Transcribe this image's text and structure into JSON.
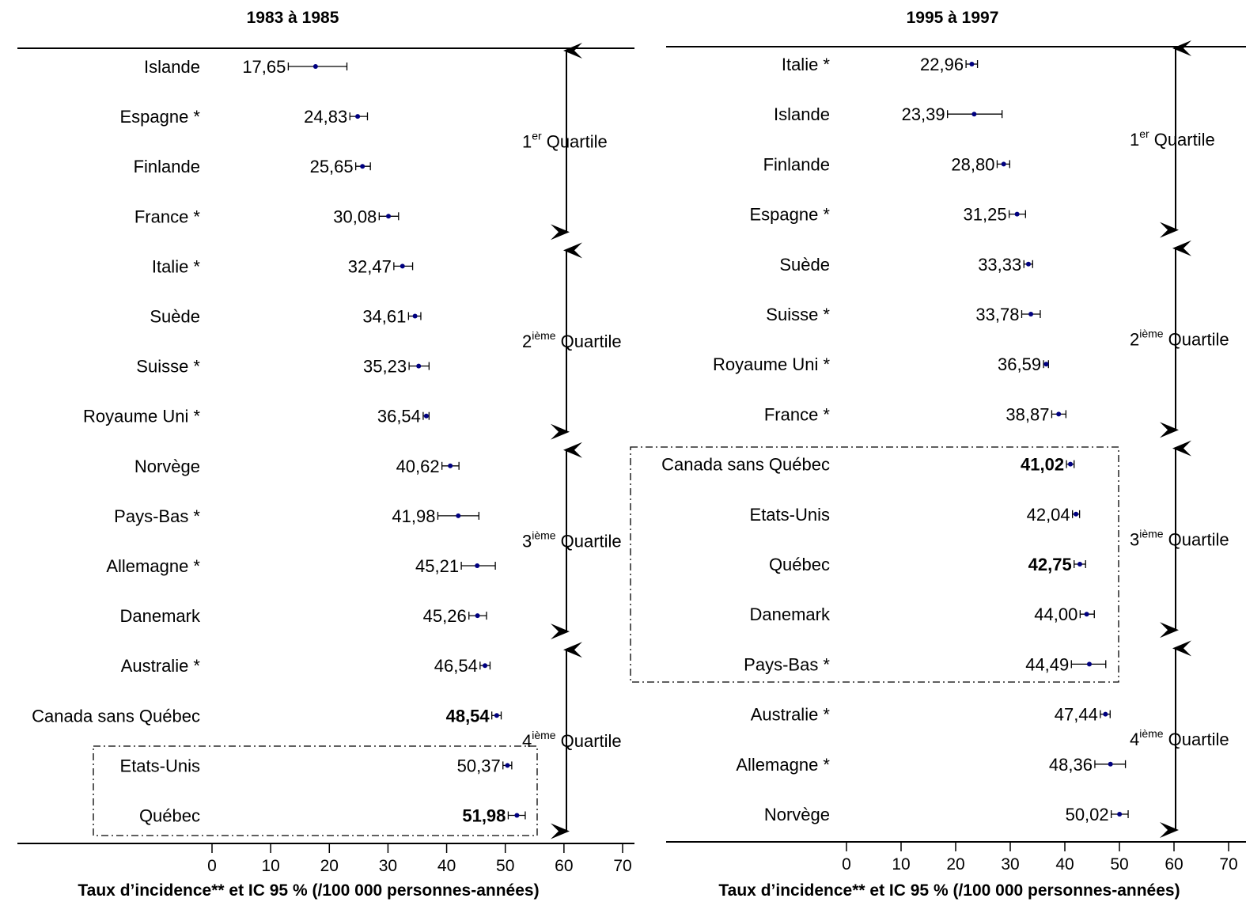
{
  "chart_data": [
    {
      "type": "forest",
      "title": "1983 à 1985",
      "xlabel": "Taux d’incidence** et IC 95 % (/100 000 personnes-années)",
      "xlim": [
        0,
        70
      ],
      "xticks": [
        0,
        10,
        20,
        30,
        40,
        50,
        60,
        70
      ],
      "series": [
        {
          "label": "Islande",
          "value": 17.65,
          "value_label": "17,65",
          "ci": [
            13.0,
            23.0
          ],
          "bold": false
        },
        {
          "label": "Espagne *",
          "value": 24.83,
          "value_label": "24,83",
          "ci": [
            23.5,
            26.5
          ],
          "bold": false
        },
        {
          "label": "Finlande",
          "value": 25.65,
          "value_label": "25,65",
          "ci": [
            24.5,
            27.0
          ],
          "bold": false
        },
        {
          "label": "France *",
          "value": 30.08,
          "value_label": "30,08",
          "ci": [
            28.5,
            31.8
          ],
          "bold": false
        },
        {
          "label": "Italie *",
          "value": 32.47,
          "value_label": "32,47",
          "ci": [
            31.0,
            34.2
          ],
          "bold": false
        },
        {
          "label": "Suède",
          "value": 34.61,
          "value_label": "34,61",
          "ci": [
            33.5,
            35.6
          ],
          "bold": false
        },
        {
          "label": "Suisse *",
          "value": 35.23,
          "value_label": "35,23",
          "ci": [
            33.6,
            37.0
          ],
          "bold": false
        },
        {
          "label": "Royaume Uni *",
          "value": 36.54,
          "value_label": "36,54",
          "ci": [
            36.0,
            37.0
          ],
          "bold": false
        },
        {
          "label": "Norvège",
          "value": 40.62,
          "value_label": "40,62",
          "ci": [
            39.2,
            42.1
          ],
          "bold": false
        },
        {
          "label": "Pays-Bas *",
          "value": 41.98,
          "value_label": "41,98",
          "ci": [
            38.5,
            45.5
          ],
          "bold": false
        },
        {
          "label": "Allemagne *",
          "value": 45.21,
          "value_label": "45,21",
          "ci": [
            42.5,
            48.3
          ],
          "bold": false
        },
        {
          "label": "Danemark",
          "value": 45.26,
          "value_label": "45,26",
          "ci": [
            43.8,
            46.8
          ],
          "bold": false
        },
        {
          "label": "Australie *",
          "value": 46.54,
          "value_label": "46,54",
          "ci": [
            45.7,
            47.4
          ],
          "bold": false
        },
        {
          "label": "Canada sans Québec",
          "value": 48.54,
          "value_label": "48,54",
          "ci": [
            47.7,
            49.3
          ],
          "bold": true
        },
        {
          "label": "Etats-Unis",
          "value": 50.37,
          "value_label": "50,37",
          "ci": [
            49.6,
            51.1
          ],
          "bold": false
        },
        {
          "label": "Québec",
          "value": 51.98,
          "value_label": "51,98",
          "ci": [
            50.5,
            53.4
          ],
          "bold": true
        }
      ],
      "quartiles": [
        {
          "num": "1",
          "sup": "er",
          "word": "Quartile"
        },
        {
          "num": "2",
          "sup": "ième",
          "word": "Quartile"
        },
        {
          "num": "3",
          "sup": "ième",
          "word": "Quartile"
        },
        {
          "num": "4",
          "sup": "ième",
          "word": "Quartile"
        }
      ],
      "highlight_box_rows": [
        14,
        15
      ],
      "marker_color": "#000080"
    },
    {
      "type": "forest",
      "title": "1995 à 1997",
      "xlabel": "Taux d’incidence** et IC 95 % (/100 000 personnes-années)",
      "xlim": [
        0,
        70
      ],
      "xticks": [
        0,
        10,
        20,
        30,
        40,
        50,
        60,
        70
      ],
      "series": [
        {
          "label": "Italie *",
          "value": 22.96,
          "value_label": "22,96",
          "ci": [
            21.9,
            24.0
          ],
          "bold": false
        },
        {
          "label": "Islande",
          "value": 23.39,
          "value_label": "23,39",
          "ci": [
            18.5,
            28.5
          ],
          "bold": false
        },
        {
          "label": "Finlande",
          "value": 28.8,
          "value_label": "28,80",
          "ci": [
            27.6,
            29.9
          ],
          "bold": false
        },
        {
          "label": "Espagne *",
          "value": 31.25,
          "value_label": "31,25",
          "ci": [
            29.8,
            32.8
          ],
          "bold": false
        },
        {
          "label": "Suède",
          "value": 33.33,
          "value_label": "33,33",
          "ci": [
            32.5,
            34.1
          ],
          "bold": false
        },
        {
          "label": "Suisse *",
          "value": 33.78,
          "value_label": "33,78",
          "ci": [
            32.1,
            35.5
          ],
          "bold": false
        },
        {
          "label": "Royaume Uni *",
          "value": 36.59,
          "value_label": "36,59",
          "ci": [
            36.1,
            37.0
          ],
          "bold": false
        },
        {
          "label": "France *",
          "value": 38.87,
          "value_label": "38,87",
          "ci": [
            37.6,
            40.2
          ],
          "bold": false
        },
        {
          "label": "Canada sans Québec",
          "value": 41.02,
          "value_label": "41,02",
          "ci": [
            40.3,
            41.7
          ],
          "bold": true
        },
        {
          "label": "Etats-Unis",
          "value": 42.04,
          "value_label": "42,04",
          "ci": [
            41.4,
            42.7
          ],
          "bold": false
        },
        {
          "label": "Québec",
          "value": 42.75,
          "value_label": "42,75",
          "ci": [
            41.7,
            43.8
          ],
          "bold": true
        },
        {
          "label": "Danemark",
          "value": 44.0,
          "value_label": "44,00",
          "ci": [
            42.8,
            45.4
          ],
          "bold": false
        },
        {
          "label": "Pays-Bas *",
          "value": 44.49,
          "value_label": "44,49",
          "ci": [
            41.2,
            47.5
          ],
          "bold": false
        },
        {
          "label": "Australie *",
          "value": 47.44,
          "value_label": "47,44",
          "ci": [
            46.5,
            48.3
          ],
          "bold": false
        },
        {
          "label": "Allemagne *",
          "value": 48.36,
          "value_label": "48,36",
          "ci": [
            45.5,
            51.1
          ],
          "bold": false
        },
        {
          "label": "Norvège",
          "value": 50.02,
          "value_label": "50,02",
          "ci": [
            48.5,
            51.6
          ],
          "bold": false
        }
      ],
      "quartiles": [
        {
          "num": "1",
          "sup": "er",
          "word": "Quartile"
        },
        {
          "num": "2",
          "sup": "ième",
          "word": "Quartile"
        },
        {
          "num": "3",
          "sup": "ième",
          "word": "Quartile"
        },
        {
          "num": "4",
          "sup": "ième",
          "word": "Quartile"
        }
      ],
      "highlight_box_rows": [
        8,
        12
      ],
      "marker_color": "#000080"
    }
  ]
}
